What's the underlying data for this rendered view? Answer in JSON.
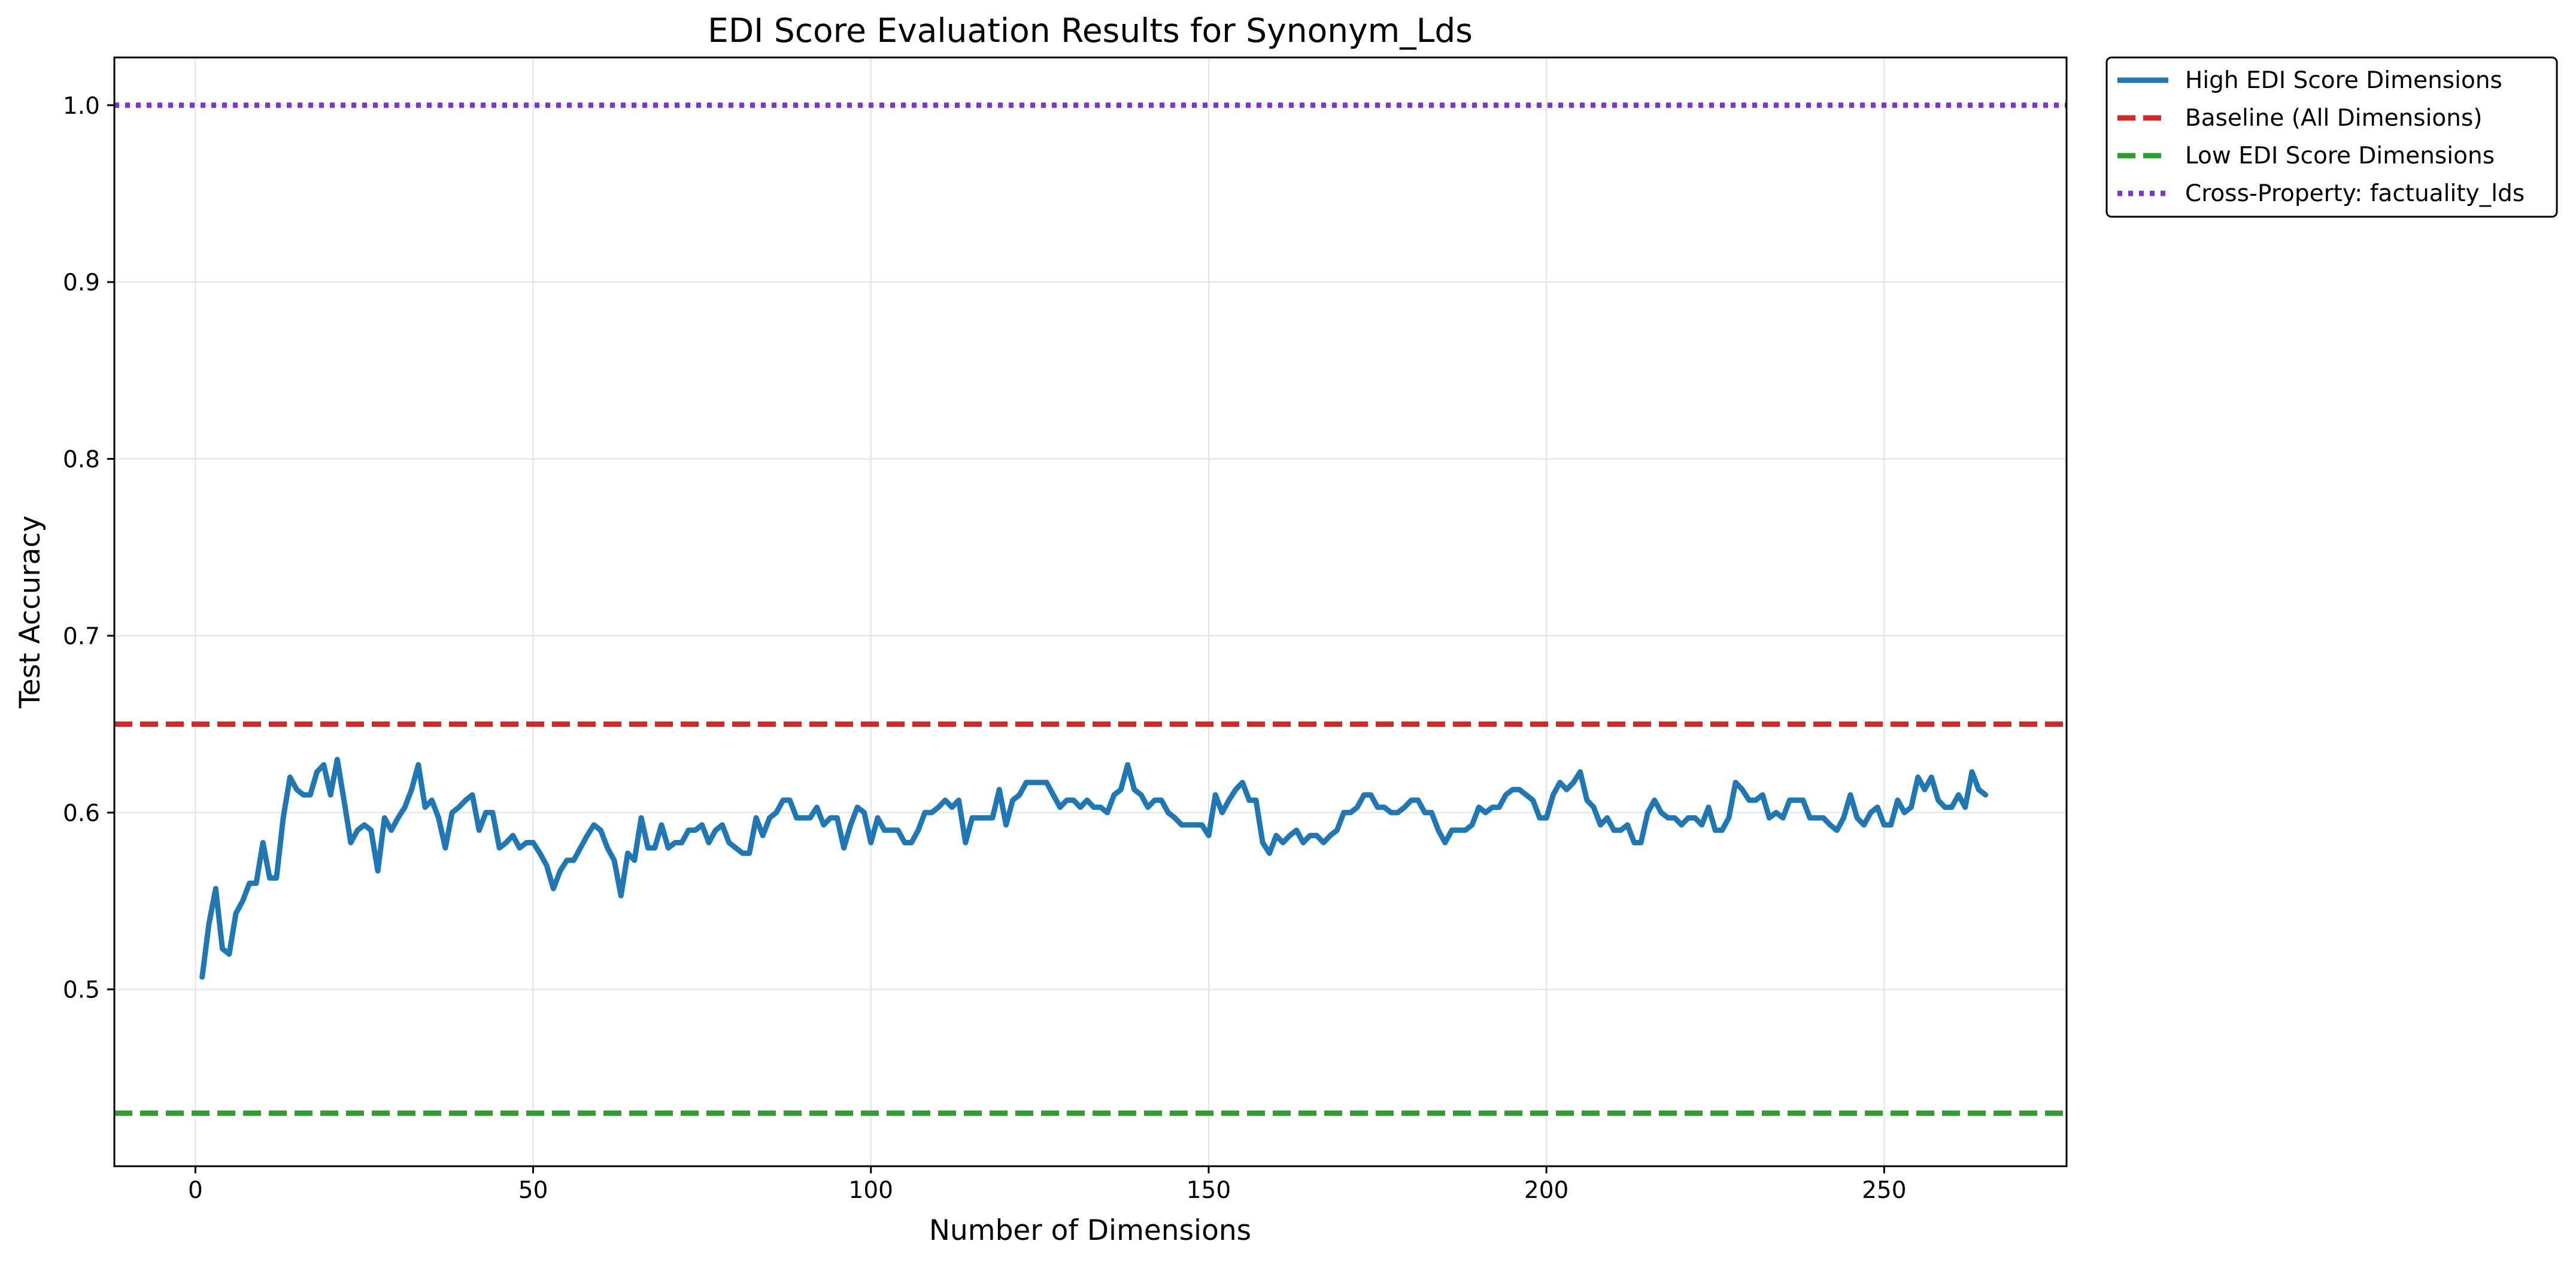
{
  "chart_data": {
    "type": "line",
    "title": "EDI Score Evaluation Results for Synonym_Lds",
    "xlabel": "Number of Dimensions",
    "ylabel": "Test Accuracy",
    "xlim": [
      -12,
      277
    ],
    "ylim": [
      0.4,
      1.027
    ],
    "x_ticks": [
      0,
      50,
      100,
      150,
      200,
      250
    ],
    "y_ticks": [
      0.5,
      0.6,
      0.7,
      0.8,
      0.9,
      1.0
    ],
    "x_tick_labels": [
      "0",
      "50",
      "100",
      "150",
      "200",
      "250"
    ],
    "y_tick_labels": [
      "0.5",
      "0.6",
      "0.7",
      "0.8",
      "0.9",
      "1.0"
    ],
    "grid": true,
    "legend_position": "outside top-right",
    "series": [
      {
        "name": "High EDI Score Dimensions",
        "color": "#1f77b4",
        "style": "solid",
        "x_start": 1,
        "x_step": 1,
        "values": [
          0.507,
          0.537,
          0.557,
          0.523,
          0.52,
          0.543,
          0.55,
          0.56,
          0.56,
          0.583,
          0.563,
          0.563,
          0.597,
          0.62,
          0.613,
          0.61,
          0.61,
          0.623,
          0.627,
          0.61,
          0.63,
          0.607,
          0.583,
          0.59,
          0.593,
          0.59,
          0.567,
          0.597,
          0.59,
          0.597,
          0.603,
          0.613,
          0.627,
          0.603,
          0.607,
          0.597,
          0.58,
          0.6,
          0.603,
          0.607,
          0.61,
          0.59,
          0.6,
          0.6,
          0.58,
          0.583,
          0.587,
          0.58,
          0.583,
          0.583,
          0.577,
          0.57,
          0.557,
          0.567,
          0.573,
          0.573,
          0.58,
          0.587,
          0.593,
          0.59,
          0.58,
          0.573,
          0.553,
          0.577,
          0.573,
          0.597,
          0.58,
          0.58,
          0.593,
          0.58,
          0.583,
          0.583,
          0.59,
          0.59,
          0.593,
          0.583,
          0.59,
          0.593,
          0.583,
          0.58,
          0.577,
          0.577,
          0.597,
          0.587,
          0.597,
          0.6,
          0.607,
          0.607,
          0.597,
          0.597,
          0.597,
          0.603,
          0.593,
          0.597,
          0.597,
          0.58,
          0.593,
          0.603,
          0.6,
          0.583,
          0.597,
          0.59,
          0.59,
          0.59,
          0.583,
          0.583,
          0.59,
          0.6,
          0.6,
          0.603,
          0.607,
          0.603,
          0.607,
          0.583,
          0.597,
          0.597,
          0.597,
          0.597,
          0.613,
          0.593,
          0.607,
          0.61,
          0.617,
          0.617,
          0.617,
          0.617,
          0.61,
          0.603,
          0.607,
          0.607,
          0.603,
          0.607,
          0.603,
          0.603,
          0.6,
          0.61,
          0.613,
          0.627,
          0.613,
          0.61,
          0.603,
          0.607,
          0.607,
          0.6,
          0.597,
          0.593,
          0.593,
          0.593,
          0.593,
          0.587,
          0.61,
          0.6,
          0.607,
          0.613,
          0.617,
          0.607,
          0.607,
          0.583,
          0.577,
          0.587,
          0.583,
          0.587,
          0.59,
          0.583,
          0.587,
          0.587,
          0.583,
          0.587,
          0.59,
          0.6,
          0.6,
          0.603,
          0.61,
          0.61,
          0.603,
          0.603,
          0.6,
          0.6,
          0.603,
          0.607,
          0.607,
          0.6,
          0.6,
          0.59,
          0.583,
          0.59,
          0.59,
          0.59,
          0.593,
          0.603,
          0.6,
          0.603,
          0.603,
          0.61,
          0.613,
          0.613,
          0.61,
          0.607,
          0.597,
          0.597,
          0.61,
          0.617,
          0.613,
          0.617,
          0.623,
          0.607,
          0.603,
          0.593,
          0.597,
          0.59,
          0.59,
          0.593,
          0.583,
          0.583,
          0.6,
          0.607,
          0.6,
          0.597,
          0.597,
          0.593,
          0.597,
          0.597,
          0.593,
          0.603,
          0.59,
          0.59,
          0.597,
          0.617,
          0.613,
          0.607,
          0.607,
          0.61,
          0.597,
          0.6,
          0.597,
          0.607,
          0.607,
          0.607,
          0.597,
          0.597,
          0.597,
          0.593,
          0.59,
          0.597,
          0.61,
          0.597,
          0.593,
          0.6,
          0.603,
          0.593,
          0.593,
          0.607,
          0.6,
          0.603,
          0.62,
          0.613,
          0.62,
          0.607,
          0.603,
          0.603,
          0.61,
          0.603,
          0.623,
          0.613,
          0.61
        ]
      },
      {
        "name": "Baseline (All Dimensions)",
        "color": "#d62728",
        "style": "dashed",
        "constant": 0.65
      },
      {
        "name": "Low EDI Score Dimensions",
        "color": "#2ca02c",
        "style": "dashed",
        "constant": 0.43
      },
      {
        "name": "Cross-Property: factuality_lds",
        "color": "#7b35d6",
        "style": "dotted",
        "constant": 1.0
      }
    ]
  }
}
